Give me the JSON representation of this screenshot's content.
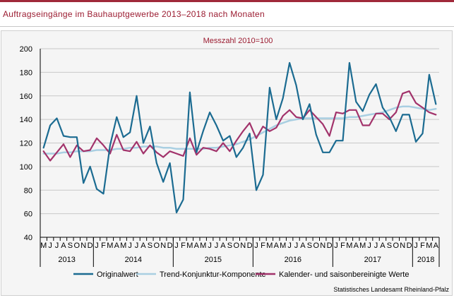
{
  "title": "Auftragseingänge im Bauhauptgewerbe 2013–2018 nach Monaten",
  "source": "Statistisches Landesamt Rheinland-Pfalz",
  "chart_data": {
    "type": "line",
    "subtitle": "Messzahl 2010=100",
    "ylim": [
      40,
      200
    ],
    "yticks": [
      40,
      60,
      80,
      100,
      120,
      140,
      160,
      180,
      200
    ],
    "grid": true,
    "legend_position": "bottom",
    "x": [
      "M",
      "J",
      "J",
      "A",
      "S",
      "O",
      "N",
      "D",
      "J",
      "F",
      "M",
      "A",
      "M",
      "J",
      "J",
      "A",
      "S",
      "O",
      "N",
      "D",
      "J",
      "F",
      "M",
      "A",
      "M",
      "J",
      "J",
      "A",
      "S",
      "O",
      "N",
      "D",
      "J",
      "F",
      "M",
      "A",
      "M",
      "J",
      "J",
      "A",
      "S",
      "O",
      "N",
      "D",
      "J",
      "F",
      "M",
      "A",
      "M",
      "J",
      "J",
      "A",
      "S",
      "O",
      "N",
      "D",
      "J",
      "F",
      "M",
      "A"
    ],
    "years": [
      {
        "label": "2013",
        "start": 0,
        "count": 8
      },
      {
        "label": "2014",
        "start": 8,
        "count": 12
      },
      {
        "label": "2015",
        "start": 20,
        "count": 12
      },
      {
        "label": "2016",
        "start": 32,
        "count": 12
      },
      {
        "label": "2017",
        "start": 44,
        "count": 12
      },
      {
        "label": "2018",
        "start": 56,
        "count": 4
      }
    ],
    "series": [
      {
        "name": "Originalwert",
        "color": "#1b6b91",
        "values": [
          116,
          135,
          141,
          126,
          125,
          125,
          86,
          100,
          81,
          77,
          118,
          142,
          125,
          129,
          160,
          120,
          134,
          103,
          87,
          103,
          61,
          72,
          163,
          112,
          130,
          146,
          135,
          122,
          126,
          108,
          116,
          128,
          80,
          93,
          167,
          140,
          158,
          188,
          169,
          140,
          153,
          127,
          112,
          112,
          122,
          122,
          188,
          155,
          147,
          161,
          170,
          150,
          142,
          130,
          144,
          144,
          121,
          128,
          178,
          153
        ]
      },
      {
        "name": "Trend-Konjunktur-Komponente",
        "color": "#a9cfe2",
        "values": [
          111,
          111,
          111,
          112,
          112,
          113,
          113,
          113,
          114,
          114,
          114,
          115,
          115,
          116,
          116,
          117,
          117,
          117,
          116,
          116,
          115,
          115,
          115,
          115,
          115,
          116,
          116,
          117,
          118,
          119,
          121,
          123,
          126,
          129,
          132,
          135,
          137,
          139,
          140,
          141,
          141,
          141,
          141,
          141,
          141,
          141,
          142,
          142,
          143,
          144,
          145,
          146,
          148,
          150,
          151,
          151,
          150,
          149,
          148,
          149
        ]
      },
      {
        "name": "Kalender- und saisonbereinigte Werte",
        "color": "#a2336b",
        "values": [
          113,
          105,
          112,
          119,
          108,
          118,
          113,
          114,
          124,
          118,
          111,
          127,
          114,
          113,
          121,
          111,
          118,
          112,
          108,
          113,
          111,
          109,
          124,
          110,
          116,
          115,
          113,
          120,
          113,
          122,
          130,
          137,
          124,
          134,
          130,
          133,
          143,
          148,
          142,
          141,
          148,
          142,
          136,
          126,
          146,
          145,
          148,
          148,
          135,
          135,
          145,
          145,
          140,
          146,
          162,
          164,
          154,
          150,
          146,
          144
        ]
      }
    ]
  }
}
